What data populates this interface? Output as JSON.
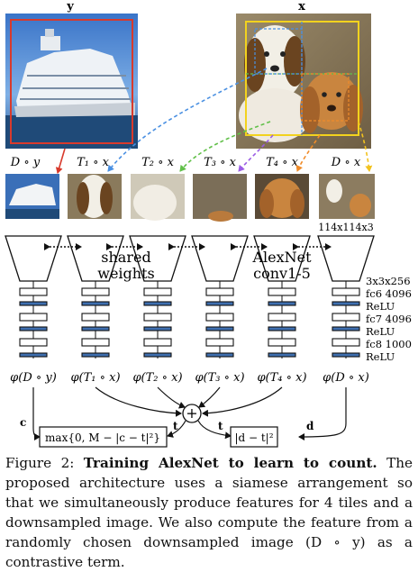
{
  "figure": {
    "top_labels": {
      "left": "y",
      "right": "x"
    },
    "tile_labels": [
      "D ∘ y",
      "T₁ ∘ x",
      "T₂ ∘ x",
      "T₃ ∘ x",
      "T₄ ∘ x",
      "D ∘ x"
    ],
    "size_label": "114x114x3",
    "shared_weights_label": [
      "shared",
      "weights"
    ],
    "alexnet_label": [
      "AlexNet",
      "conv1-5"
    ],
    "layer_labels": [
      "3x3x256",
      "fc6 4096",
      "ReLU",
      "fc7 4096",
      "ReLU",
      "fc8 1000",
      "ReLU"
    ],
    "feature_labels": [
      "φ(D ∘ y)",
      "φ(T₁ ∘ x)",
      "φ(T₂ ∘ x)",
      "φ(T₃ ∘ x)",
      "φ(T₄ ∘ x)",
      "φ(D ∘ x)"
    ],
    "sum_symbol": "+",
    "loss_left": {
      "formula": "max{0, M − |c − t|²}",
      "in_left": "c",
      "in_right": "t"
    },
    "loss_right": {
      "formula": "|d − t|²",
      "in_left": "t",
      "in_right": "d"
    },
    "colors": {
      "red_box": "#d83a2c",
      "yellow_box": "#f2d21e",
      "blue_bar": "#3f6fb0",
      "dashed": [
        "#4a90e2",
        "#62c04a",
        "#9b5de5",
        "#f08c2a",
        "#f2c21e"
      ]
    }
  },
  "caption": {
    "prefix": "Figure 2: ",
    "bold": "Training AlexNet to learn to count.",
    "text": " The proposed architecture uses a siamese arrangement so that we simultaneously produce features for 4 tiles and a downsampled image. We also compute the feature from a randomly chosen downsampled image (D ∘ y) as a contrastive term."
  }
}
